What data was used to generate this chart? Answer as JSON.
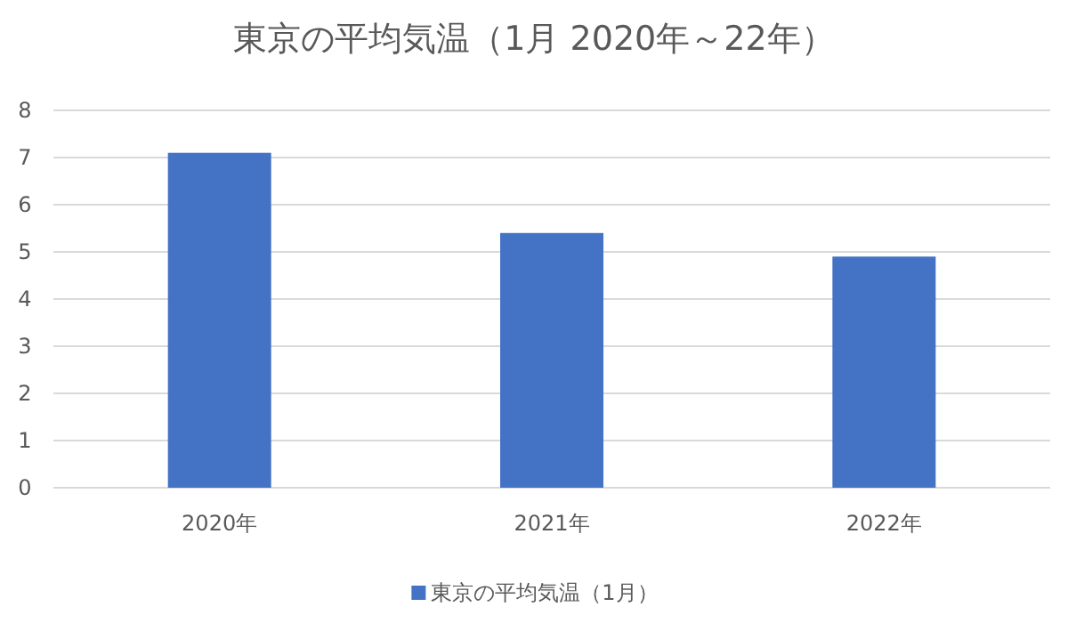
{
  "chart_data": {
    "type": "bar",
    "title": "東京の平均気温（1月 2020年～22年）",
    "categories": [
      "2020年",
      "2021年",
      "2022年"
    ],
    "series": [
      {
        "name": "東京の平均気温（1月）",
        "color": "#4472c4",
        "values": [
          7.1,
          5.4,
          4.9
        ]
      }
    ],
    "ylim": [
      0,
      8
    ],
    "yticks": [
      0,
      1,
      2,
      3,
      4,
      5,
      6,
      7,
      8
    ],
    "grid": "y",
    "legend": "bottom"
  }
}
